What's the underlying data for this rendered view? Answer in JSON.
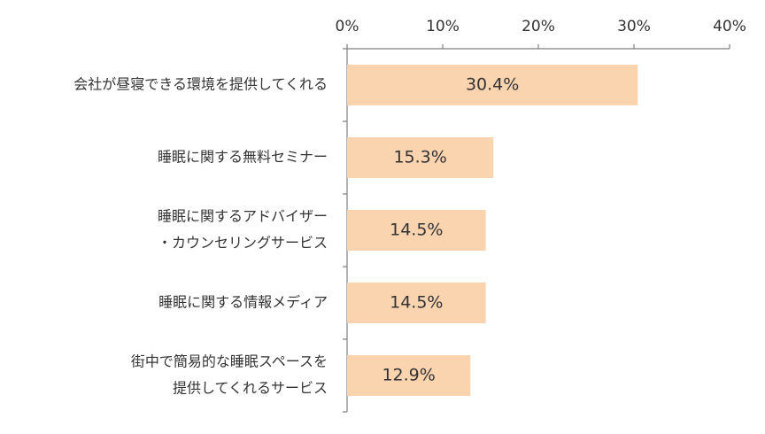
{
  "chart_data": {
    "type": "bar",
    "orientation": "horizontal",
    "categories": [
      [
        "会社が昼寝できる環境を提供してくれる"
      ],
      [
        "睡眠に関する無料セミナー"
      ],
      [
        "睡眠に関するアドバイザー",
        "・カウンセリングサービス"
      ],
      [
        "睡眠に関する情報メディア"
      ],
      [
        "街中で簡易的な睡眠スペースを",
        "提供してくれるサービス"
      ]
    ],
    "values": [
      30.4,
      15.3,
      14.5,
      14.5,
      12.9
    ],
    "data_labels": [
      "30.4%",
      "15.3%",
      "14.5%",
      "14.5%",
      "12.9%"
    ],
    "xlim": [
      0,
      40
    ],
    "ticks": [
      0,
      10,
      20,
      30,
      40
    ],
    "tick_labels": [
      "0%",
      "10%",
      "20%",
      "30%",
      "40%"
    ],
    "axis_position": "top",
    "grid": false,
    "legend": "none",
    "colors": {
      "bar": "#FAD3AF",
      "axis": "#7F7F7F",
      "text": "#333333"
    }
  }
}
